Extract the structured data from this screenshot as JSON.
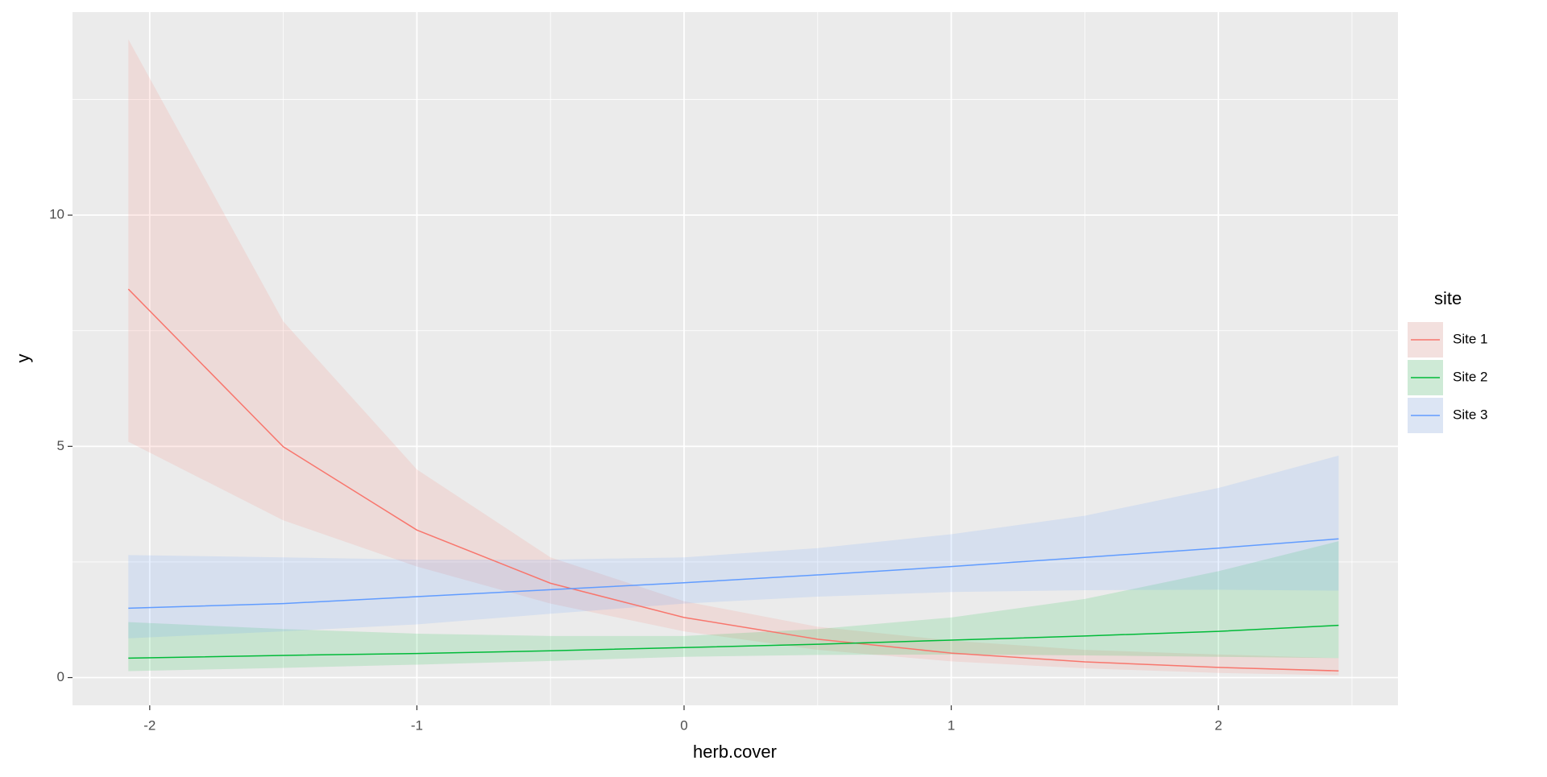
{
  "chart_data": {
    "type": "line",
    "xlabel": "herb.cover",
    "ylabel": "y",
    "legend_title": "site",
    "legend": "right",
    "grid": true,
    "xlim": [
      -2.289,
      2.672
    ],
    "ylim": [
      -0.6,
      14.39
    ],
    "xticks": [
      -2,
      -1,
      0,
      1,
      2
    ],
    "yticks": [
      0,
      5,
      10
    ],
    "x": [
      -2.08,
      -1.5,
      -1,
      -0.5,
      0,
      0.5,
      1,
      1.5,
      2,
      2.45
    ],
    "series": [
      {
        "name": "Site 1",
        "color": "#F8766D",
        "values": [
          8.4,
          4.99,
          3.19,
          2.04,
          1.3,
          0.83,
          0.53,
          0.34,
          0.22,
          0.145
        ],
        "lower": [
          5.1,
          3.4,
          2.4,
          1.6,
          1.0,
          0.6,
          0.35,
          0.2,
          0.1,
          0.05
        ],
        "upper": [
          13.8,
          7.7,
          4.5,
          2.6,
          1.65,
          1.1,
          0.8,
          0.6,
          0.5,
          0.42
        ]
      },
      {
        "name": "Site 2",
        "color": "#00BA38",
        "values": [
          0.42,
          0.48,
          0.52,
          0.58,
          0.65,
          0.72,
          0.81,
          0.9,
          1.0,
          1.13
        ],
        "lower": [
          0.14,
          0.21,
          0.28,
          0.36,
          0.45,
          0.49,
          0.5,
          0.48,
          0.45,
          0.42
        ],
        "upper": [
          1.2,
          1.05,
          0.95,
          0.9,
          0.9,
          1.05,
          1.3,
          1.7,
          2.3,
          2.95
        ]
      },
      {
        "name": "Site 3",
        "color": "#619CFF",
        "values": [
          1.5,
          1.6,
          1.75,
          1.9,
          2.05,
          2.22,
          2.4,
          2.6,
          2.8,
          3.0
        ],
        "lower": [
          0.85,
          1.0,
          1.15,
          1.38,
          1.6,
          1.75,
          1.85,
          1.89,
          1.9,
          1.88
        ],
        "upper": [
          2.65,
          2.6,
          2.55,
          2.55,
          2.6,
          2.8,
          3.1,
          3.5,
          4.1,
          4.8
        ]
      }
    ]
  }
}
